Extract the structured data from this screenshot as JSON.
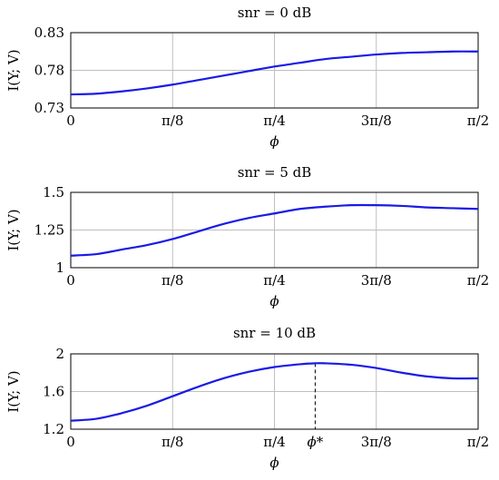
{
  "chart_data": [
    {
      "type": "line",
      "title": "snr = 0 dB",
      "xlabel": "ϕ",
      "ylabel": "I(Y; V)",
      "x_tick_labels": [
        "0",
        "π/8",
        "π/4",
        "3π/8",
        "π/2"
      ],
      "y_tick_labels": [
        "0.73",
        "0.78",
        "0.83"
      ],
      "ylim": [
        0.73,
        0.83
      ],
      "xlim": [
        0,
        1.5708
      ],
      "grid": true,
      "x": [
        0,
        0.0982,
        0.1963,
        0.2945,
        0.3927,
        0.4909,
        0.589,
        0.6872,
        0.7854,
        0.8836,
        0.9817,
        1.0799,
        1.1781,
        1.2763,
        1.3744,
        1.4726,
        1.5708
      ],
      "values": [
        0.748,
        0.749,
        0.752,
        0.756,
        0.761,
        0.767,
        0.773,
        0.779,
        0.785,
        0.79,
        0.795,
        0.798,
        0.801,
        0.803,
        0.804,
        0.805,
        0.805
      ]
    },
    {
      "type": "line",
      "title": "snr = 5 dB",
      "xlabel": "ϕ",
      "ylabel": "I(Y; V)",
      "x_tick_labels": [
        "0",
        "π/8",
        "π/4",
        "3π/8",
        "π/2"
      ],
      "y_tick_labels": [
        "1",
        "1.25",
        "1.5"
      ],
      "ylim": [
        1.0,
        1.5
      ],
      "xlim": [
        0,
        1.5708
      ],
      "grid": true,
      "x": [
        0,
        0.0982,
        0.1963,
        0.2945,
        0.3927,
        0.4909,
        0.589,
        0.6872,
        0.7854,
        0.8836,
        0.9817,
        1.0799,
        1.1781,
        1.2763,
        1.3744,
        1.4726,
        1.5708
      ],
      "values": [
        1.08,
        1.09,
        1.12,
        1.15,
        1.19,
        1.24,
        1.29,
        1.33,
        1.36,
        1.39,
        1.405,
        1.415,
        1.415,
        1.41,
        1.4,
        1.395,
        1.39
      ]
    },
    {
      "type": "line",
      "title": "snr = 10 dB",
      "xlabel": "ϕ",
      "ylabel": "I(Y; V)",
      "x_tick_labels": [
        "0",
        "π/8",
        "π/4",
        "3π/8",
        "π/2"
      ],
      "y_tick_labels": [
        "1.2",
        "1.6",
        "2"
      ],
      "ylim": [
        1.2,
        2.0
      ],
      "xlim": [
        0,
        1.5708
      ],
      "grid": true,
      "annotation": "ϕ*",
      "annotation_x": 0.9425,
      "x": [
        0,
        0.0982,
        0.1963,
        0.2945,
        0.3927,
        0.4909,
        0.589,
        0.6872,
        0.7854,
        0.8836,
        0.9425,
        0.9817,
        1.0799,
        1.1781,
        1.2763,
        1.3744,
        1.4726,
        1.5708
      ],
      "values": [
        1.29,
        1.31,
        1.37,
        1.45,
        1.55,
        1.65,
        1.74,
        1.81,
        1.86,
        1.89,
        1.9,
        1.9,
        1.885,
        1.85,
        1.8,
        1.76,
        1.74,
        1.74
      ]
    }
  ]
}
